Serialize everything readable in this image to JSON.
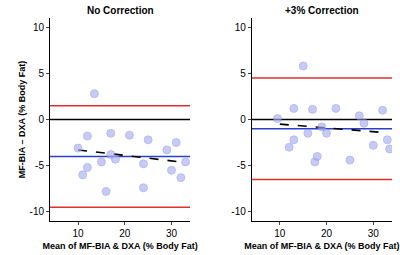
{
  "chart_data": [
    {
      "type": "scatter",
      "title": "No Correction",
      "x_label": "Mean of MF-BIA & DXA (% Body Fat)",
      "y_label": "MF-BIA – DXA (% Body Fat)",
      "xlim": [
        4,
        34
      ],
      "ylim": [
        -11,
        11
      ],
      "xticks": [
        10,
        20,
        30
      ],
      "yticks": [
        -10,
        -5,
        0,
        5,
        10
      ],
      "grid": false,
      "series": [
        {
          "type": "line",
          "line_style": "solid",
          "color": "#000000",
          "x": [
            4,
            34
          ],
          "values": [
            0,
            0
          ]
        },
        {
          "type": "line",
          "line_style": "solid",
          "color": "#2a3fd0",
          "x": [
            4,
            34
          ],
          "values": [
            -4,
            -4
          ]
        },
        {
          "type": "line",
          "line_style": "solid",
          "color": "#e0302a",
          "x": [
            4,
            34
          ],
          "values": [
            1.5,
            1.5
          ]
        },
        {
          "type": "line",
          "line_style": "solid",
          "color": "#e0302a",
          "x": [
            4,
            34
          ],
          "values": [
            -9.5,
            -9.5
          ]
        },
        {
          "type": "line",
          "line_style": "dashed",
          "color": "#000000",
          "x": [
            10,
            32
          ],
          "values": [
            -3.3,
            -4.6
          ]
        },
        {
          "type": "scatter",
          "marker": "circle",
          "color": "#a9aef0",
          "x": [
            10,
            11,
            12,
            12,
            13.5,
            15,
            16,
            17,
            17,
            18,
            21,
            24,
            24,
            25,
            29,
            30,
            31,
            32,
            33
          ],
          "values": [
            -3.1,
            -6,
            -5.2,
            -1.8,
            2.8,
            -4.6,
            -7.8,
            -1.5,
            -3.8,
            -4.3,
            -1.7,
            -7.4,
            -4.8,
            -2.2,
            -3.3,
            -5.5,
            -2.5,
            -6.3,
            -4.6
          ]
        }
      ]
    },
    {
      "type": "scatter",
      "title": "+3% Correction",
      "x_label": "Mean of MF-BIA & DXA (% Body Fat)",
      "xlim": [
        4,
        34
      ],
      "ylim": [
        -11,
        11
      ],
      "xticks": [
        10,
        20,
        30
      ],
      "yticks": [
        -10,
        -5,
        0,
        5,
        10
      ],
      "grid": false,
      "series": [
        {
          "type": "line",
          "line_style": "solid",
          "color": "#000000",
          "x": [
            4,
            34
          ],
          "values": [
            0,
            0
          ]
        },
        {
          "type": "line",
          "line_style": "solid",
          "color": "#2a3fd0",
          "x": [
            4,
            34
          ],
          "values": [
            -1,
            -1
          ]
        },
        {
          "type": "line",
          "line_style": "solid",
          "color": "#e0302a",
          "x": [
            4,
            34
          ],
          "values": [
            4.5,
            4.5
          ]
        },
        {
          "type": "line",
          "line_style": "solid",
          "color": "#e0302a",
          "x": [
            4,
            34
          ],
          "values": [
            -6.5,
            -6.5
          ]
        },
        {
          "type": "line",
          "line_style": "dashed",
          "color": "#000000",
          "x": [
            10,
            32
          ],
          "values": [
            -0.5,
            -1.4
          ]
        },
        {
          "type": "scatter",
          "marker": "circle",
          "color": "#a9aef0",
          "x": [
            9.5,
            12,
            13,
            13,
            15,
            16,
            17,
            17.5,
            18,
            19,
            20,
            22,
            25,
            27,
            28,
            30,
            32,
            33,
            33.5
          ],
          "values": [
            0.1,
            -3,
            1.2,
            -2.2,
            5.8,
            -1.5,
            1.1,
            -4.6,
            -4,
            -0.8,
            -1.5,
            1.2,
            -4.4,
            0.4,
            -0.4,
            -2.8,
            1,
            -2.2,
            -3.2
          ]
        }
      ]
    }
  ]
}
